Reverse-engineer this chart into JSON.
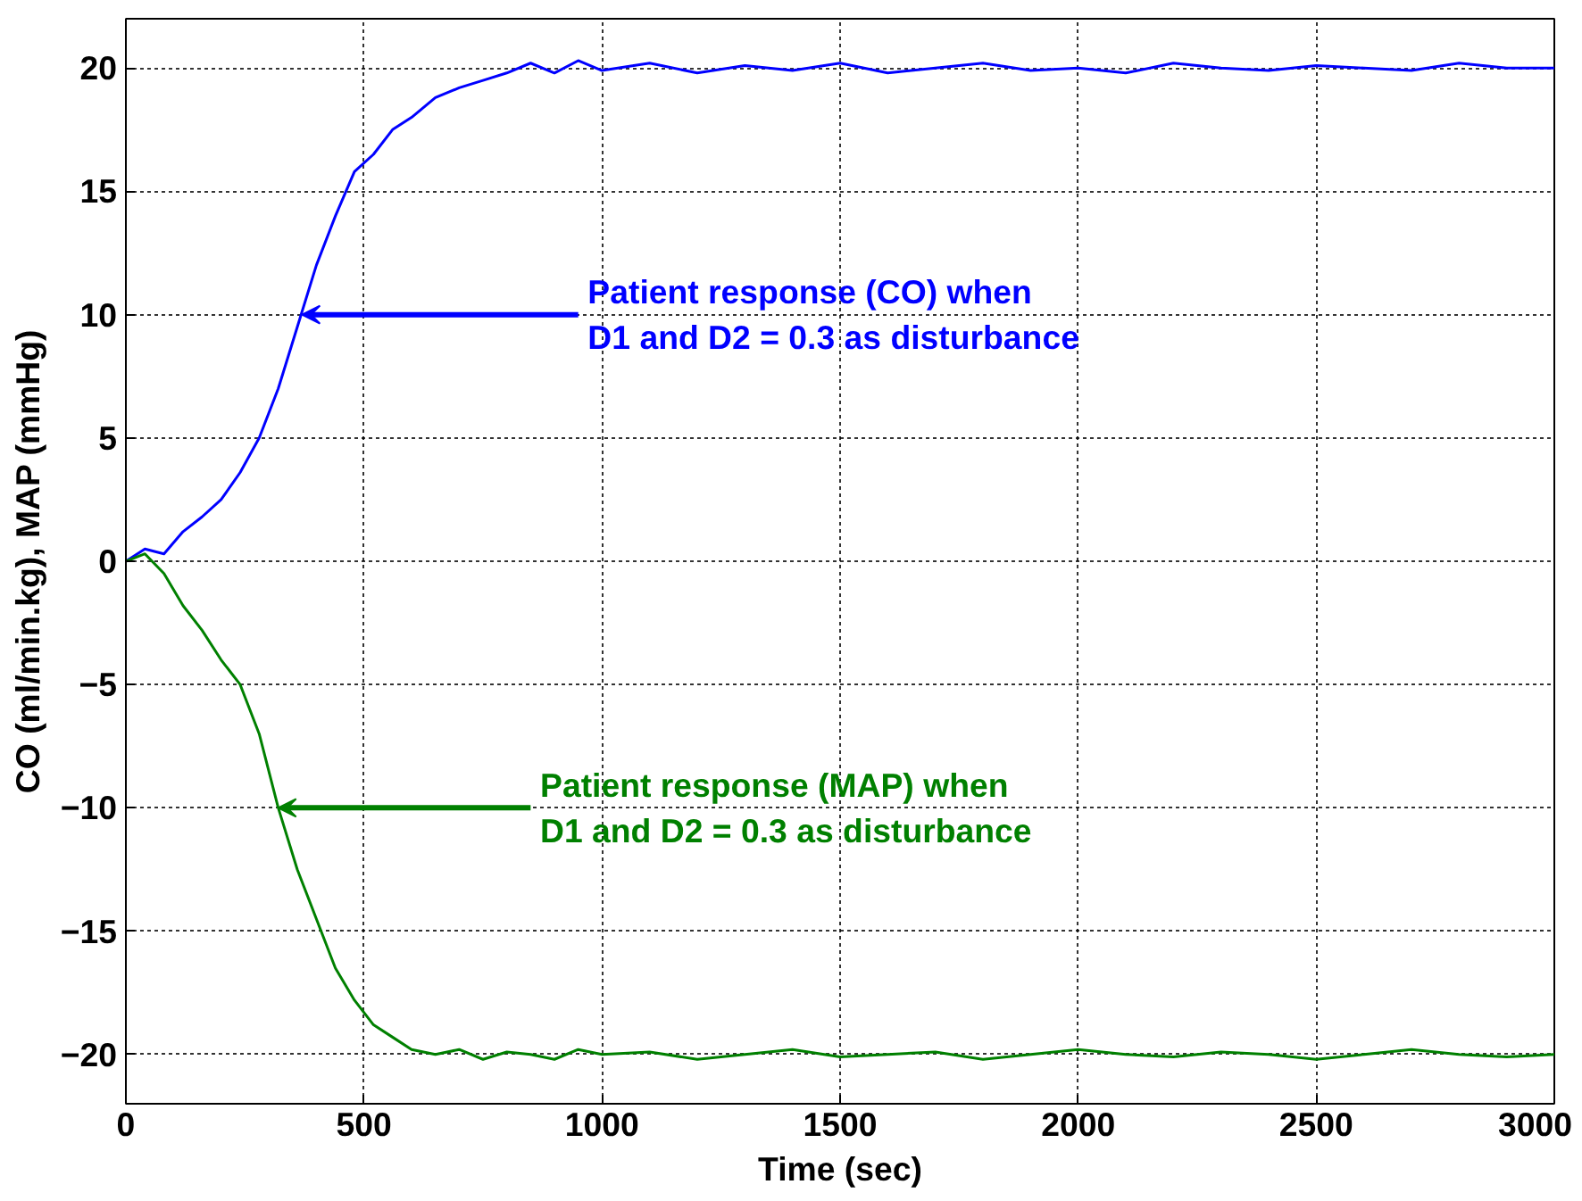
{
  "chart_data": {
    "type": "line",
    "xlabel": "Time (sec)",
    "ylabel": "CO (ml/min.kg), MAP (mmHg)",
    "xlim": [
      0,
      3000
    ],
    "ylim": [
      -22,
      22
    ],
    "xticks": [
      0,
      500,
      1000,
      1500,
      2000,
      2500,
      3000
    ],
    "yticks": [
      -20,
      -15,
      -10,
      -5,
      0,
      5,
      10,
      15,
      20
    ],
    "grid": true,
    "line_style": "solid",
    "series": [
      {
        "color": "#0000ff",
        "x": [
          0,
          40,
          80,
          120,
          160,
          200,
          240,
          280,
          320,
          360,
          400,
          440,
          480,
          520,
          560,
          600,
          650,
          700,
          750,
          800,
          850,
          900,
          950,
          1000,
          1100,
          1200,
          1300,
          1400,
          1500,
          1600,
          1700,
          1800,
          1900,
          2000,
          2100,
          2200,
          2300,
          2400,
          2500,
          2600,
          2700,
          2800,
          2900,
          3000
        ],
        "values": [
          0,
          0.5,
          0.3,
          1.2,
          1.8,
          2.5,
          3.6,
          5,
          7,
          9.5,
          12,
          14,
          15.8,
          16.5,
          17.5,
          18,
          18.8,
          19.2,
          19.5,
          19.8,
          20.2,
          19.8,
          20.3,
          19.9,
          20.2,
          19.8,
          20.1,
          19.9,
          20.2,
          19.8,
          20,
          20.2,
          19.9,
          20,
          19.8,
          20.2,
          20,
          19.9,
          20.1,
          20,
          19.9,
          20.2,
          20,
          20
        ]
      },
      {
        "color": "#008000",
        "x": [
          0,
          40,
          80,
          120,
          160,
          200,
          240,
          280,
          320,
          360,
          400,
          440,
          480,
          520,
          560,
          600,
          650,
          700,
          750,
          800,
          850,
          900,
          950,
          1000,
          1100,
          1200,
          1300,
          1400,
          1500,
          1600,
          1700,
          1800,
          1900,
          2000,
          2100,
          2200,
          2300,
          2400,
          2500,
          2600,
          2700,
          2800,
          2900,
          3000
        ],
        "values": [
          0,
          0.3,
          -0.5,
          -1.8,
          -2.8,
          -4,
          -5,
          -7,
          -10,
          -12.5,
          -14.5,
          -16.5,
          -17.8,
          -18.8,
          -19.3,
          -19.8,
          -20,
          -19.8,
          -20.2,
          -19.9,
          -20,
          -20.2,
          -19.8,
          -20,
          -19.9,
          -20.2,
          -20,
          -19.8,
          -20.1,
          -20,
          -19.9,
          -20.2,
          -20,
          -19.8,
          -20,
          -20.1,
          -19.9,
          -20,
          -20.2,
          -20,
          -19.8,
          -20,
          -20.1,
          -20
        ]
      }
    ],
    "annotations": [
      {
        "text": "Patient response (CO) when\nD1 and D2 = 0.3 as disturbance",
        "x": 370,
        "y": 10
      },
      {
        "text": "Patient response (MAP) when\nD1 and D2 = 0.3 as disturbance",
        "x": 320,
        "y": -10
      }
    ]
  }
}
